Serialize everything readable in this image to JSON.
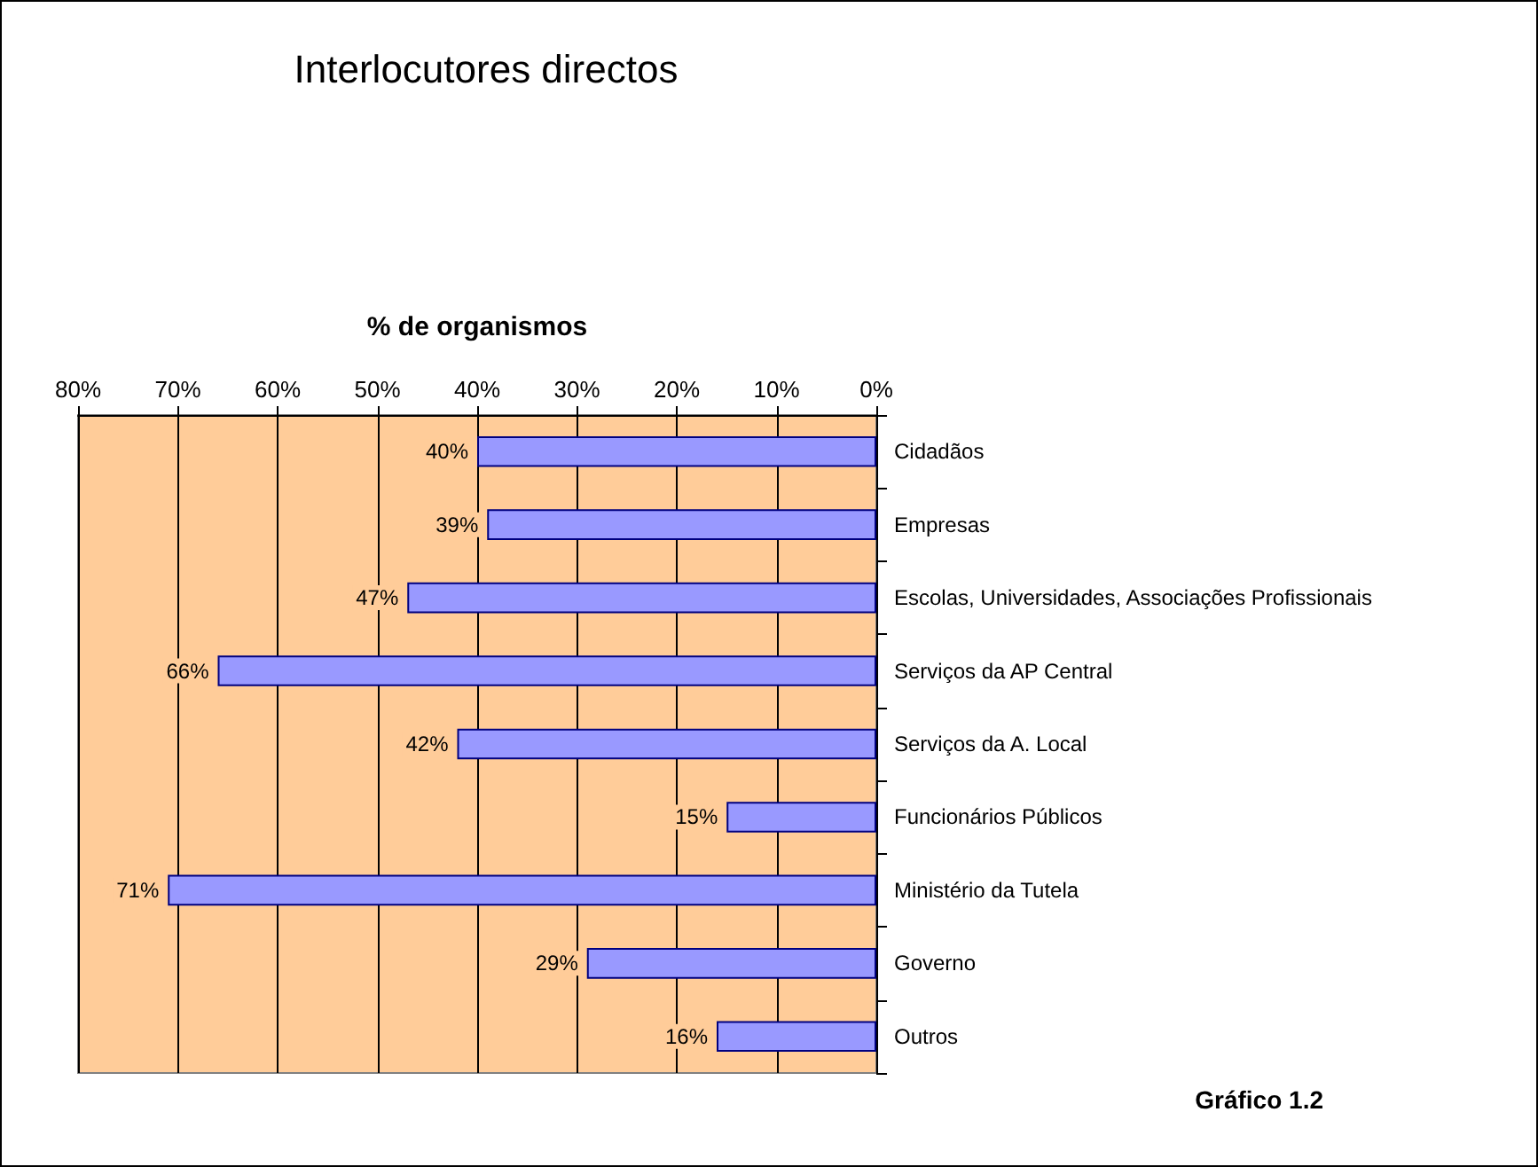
{
  "chart_data": {
    "type": "bar",
    "orientation": "horizontal",
    "title": "Interlocutores directos",
    "xlabel": "% de organismos",
    "categories": [
      "Cidadãos",
      "Empresas",
      "Escolas, Universidades, Associações Profissionais",
      "Serviços da AP Central",
      "Serviços da A. Local",
      "Funcionários Públicos",
      "Ministério da Tutela",
      "Governo",
      "Outros"
    ],
    "values": [
      40,
      39,
      47,
      66,
      42,
      15,
      71,
      29,
      16
    ],
    "value_labels": [
      "40%",
      "39%",
      "47%",
      "66%",
      "42%",
      "15%",
      "71%",
      "29%",
      "16%"
    ],
    "color": "#9999ff",
    "xlim": [
      80,
      0
    ],
    "xticks": [
      {
        "value": 80,
        "label": "80%"
      },
      {
        "value": 70,
        "label": "70%"
      },
      {
        "value": 60,
        "label": "60%"
      },
      {
        "value": 50,
        "label": "50%"
      },
      {
        "value": 40,
        "label": "40%"
      },
      {
        "value": 30,
        "label": "30%"
      },
      {
        "value": 20,
        "label": "20%"
      },
      {
        "value": 10,
        "label": "10%"
      },
      {
        "value": 0,
        "label": "0%"
      }
    ],
    "grid": "x",
    "annotations": [
      "Gráfico 1.2"
    ]
  }
}
